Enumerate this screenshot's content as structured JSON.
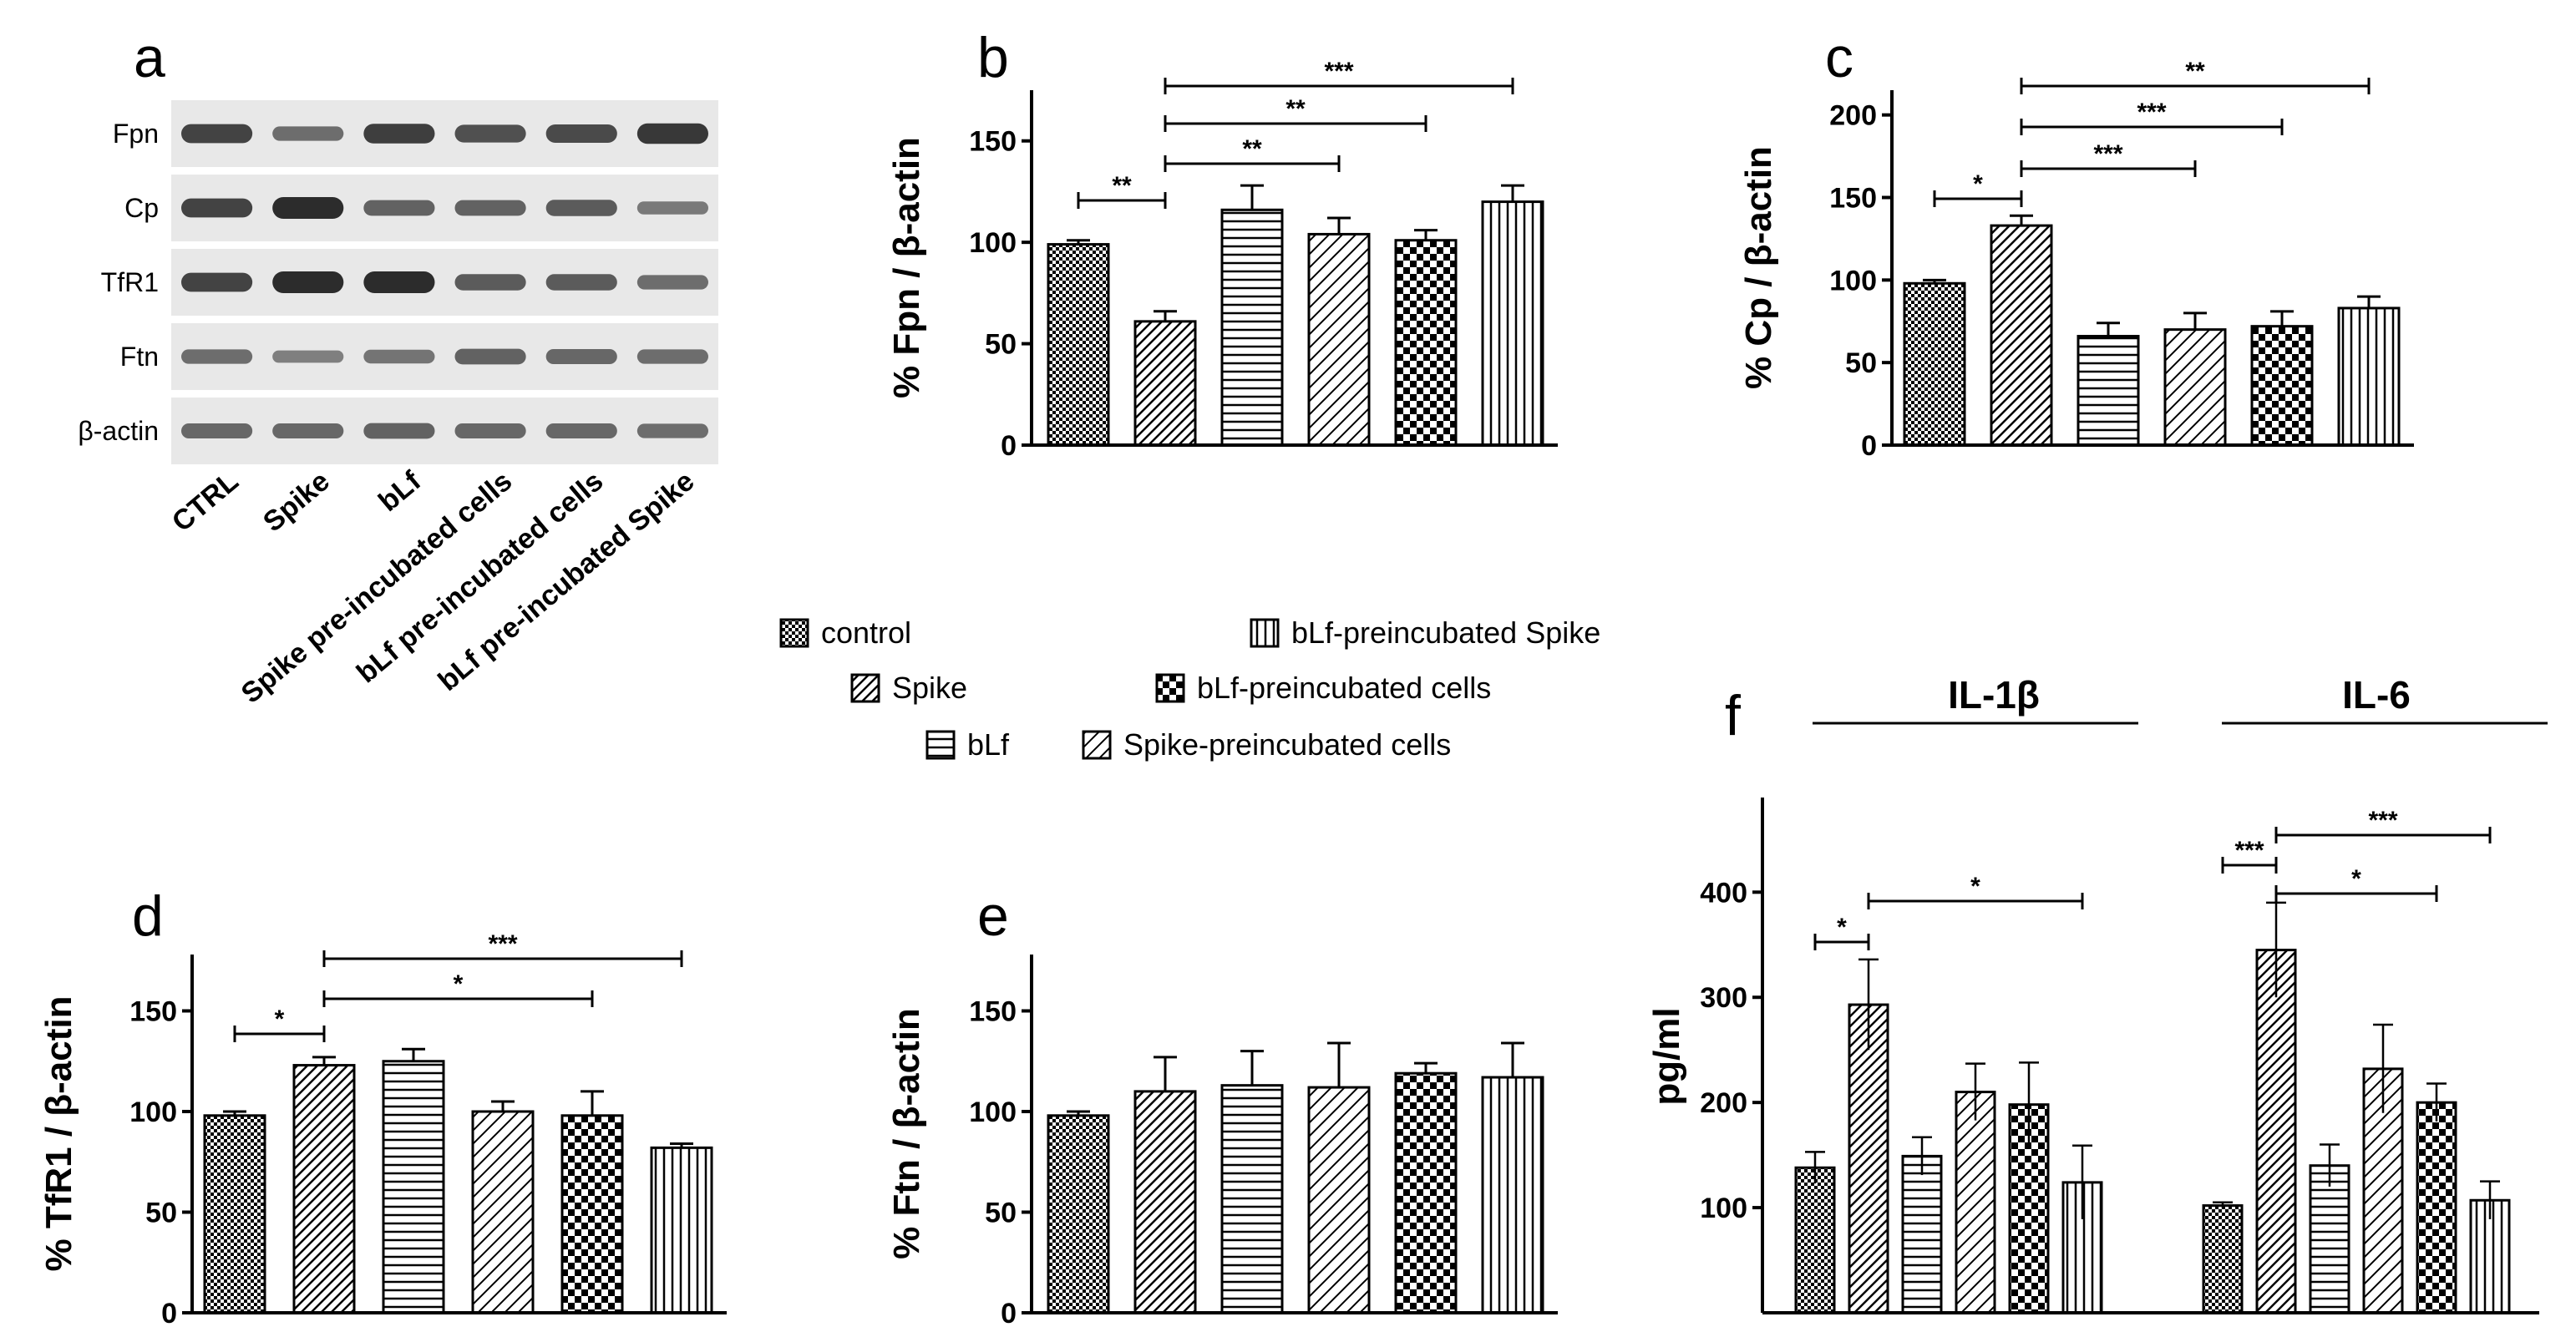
{
  "panel_labels": {
    "a": "a",
    "b": "b",
    "c": "c",
    "d": "d",
    "e": "e",
    "f": "f"
  },
  "colors": {
    "ink": "#000000",
    "blot_bg": "#e8e8e8",
    "band": "#222222",
    "bar_fill": "#ffffff"
  },
  "legend": {
    "items": [
      {
        "label": "control",
        "pattern": "control"
      },
      {
        "label": "Spike",
        "pattern": "spike"
      },
      {
        "label": "bLf",
        "pattern": "blf"
      },
      {
        "label": "bLf-preincubated Spike",
        "pattern": "blfspike"
      },
      {
        "label": "bLf-preincubated cells",
        "pattern": "blfcells"
      },
      {
        "label": "Spike-preincubated cells",
        "pattern": "spikecells"
      }
    ]
  },
  "western_blot": {
    "proteins": [
      "Fpn",
      "Cp",
      "TfR1",
      "Ftn",
      "β-actin"
    ],
    "lanes": [
      "CTRL",
      "Spike",
      "bLf",
      "Spike pre-incubated cells",
      "bLf pre-incubated cells",
      "bLf pre-incubated Spike"
    ],
    "band_intensity": [
      [
        0.8,
        0.45,
        0.85,
        0.7,
        0.75,
        0.9
      ],
      [
        0.8,
        1.0,
        0.55,
        0.55,
        0.6,
        0.35
      ],
      [
        0.8,
        1.0,
        1.0,
        0.6,
        0.6,
        0.45
      ],
      [
        0.45,
        0.3,
        0.4,
        0.55,
        0.5,
        0.45
      ],
      [
        0.5,
        0.5,
        0.55,
        0.5,
        0.5,
        0.45
      ]
    ]
  },
  "chart_data": [
    {
      "id": "b",
      "type": "bar",
      "title": "b",
      "ylabel": "% Fpn / β-actin",
      "ylim": [
        0,
        175
      ],
      "yticks": [
        0,
        50,
        100,
        150
      ],
      "patterns": [
        "control",
        "spike",
        "blf",
        "spikecells",
        "blfcells",
        "blfspike"
      ],
      "values": [
        99,
        61,
        116,
        104,
        101,
        120
      ],
      "errors": [
        2,
        5,
        12,
        8,
        5,
        8
      ],
      "significance": [
        {
          "from": 0,
          "to": 1,
          "label": "**"
        },
        {
          "from": 1,
          "to": 3,
          "label": "**"
        },
        {
          "from": 1,
          "to": 4,
          "label": "**"
        },
        {
          "from": 1,
          "to": 5,
          "label": "***"
        }
      ]
    },
    {
      "id": "c",
      "type": "bar",
      "title": "c",
      "ylabel": "% Cp / β-actin",
      "ylim": [
        0,
        215
      ],
      "yticks": [
        0,
        50,
        100,
        150,
        200
      ],
      "patterns": [
        "control",
        "spike",
        "blf",
        "spikecells",
        "blfcells",
        "blfspike"
      ],
      "values": [
        98,
        133,
        66,
        70,
        72,
        83
      ],
      "errors": [
        2,
        6,
        8,
        10,
        9,
        7
      ],
      "significance": [
        {
          "from": 0,
          "to": 1,
          "label": "*"
        },
        {
          "from": 1,
          "to": 3,
          "label": "***"
        },
        {
          "from": 1,
          "to": 4,
          "label": "***"
        },
        {
          "from": 1,
          "to": 5,
          "label": "**"
        }
      ]
    },
    {
      "id": "d",
      "type": "bar",
      "title": "d",
      "ylabel": "% TfR1 / β-actin",
      "ylim": [
        0,
        178
      ],
      "yticks": [
        0,
        50,
        100,
        150
      ],
      "patterns": [
        "control",
        "spike",
        "blf",
        "spikecells",
        "blfcells",
        "blfspike"
      ],
      "values": [
        98,
        123,
        125,
        100,
        98,
        82
      ],
      "errors": [
        2,
        4,
        6,
        5,
        12,
        2
      ],
      "significance": [
        {
          "from": 0,
          "to": 1,
          "label": "*"
        },
        {
          "from": 1,
          "to": 4,
          "label": "*"
        },
        {
          "from": 1,
          "to": 5,
          "label": "***"
        }
      ]
    },
    {
      "id": "e",
      "type": "bar",
      "title": "e",
      "ylabel": "% Ftn / β-actin",
      "ylim": [
        0,
        178
      ],
      "yticks": [
        0,
        50,
        100,
        150
      ],
      "patterns": [
        "control",
        "spike",
        "blf",
        "spikecells",
        "blfcells",
        "blfspike"
      ],
      "values": [
        98,
        110,
        113,
        112,
        119,
        117
      ],
      "errors": [
        2,
        17,
        17,
        22,
        5,
        17
      ],
      "significance": []
    },
    {
      "id": "f",
      "type": "bar",
      "title": "f",
      "ylabel": "pg/ml",
      "ylim": [
        0,
        490
      ],
      "yticks": [
        100,
        200,
        300,
        400
      ],
      "groups": [
        "IL-1β",
        "IL-6"
      ],
      "patterns": [
        "control",
        "spike",
        "blf",
        "spikecells",
        "blfcells",
        "blfspike"
      ],
      "series": [
        {
          "name": "IL-1β",
          "values": [
            138,
            293,
            149,
            210,
            198,
            124
          ],
          "errors": [
            15,
            43,
            18,
            27,
            40,
            35
          ]
        },
        {
          "name": "IL-6",
          "values": [
            102,
            345,
            140,
            232,
            200,
            107
          ],
          "errors": [
            3,
            45,
            20,
            42,
            18,
            18
          ]
        }
      ],
      "significance": [
        {
          "group": 0,
          "from": 0,
          "to": 1,
          "label": "*"
        },
        {
          "group": 0,
          "from": 1,
          "to": 5,
          "label": "*"
        },
        {
          "group": 1,
          "from": 0,
          "to": 1,
          "label": "***"
        },
        {
          "group": 1,
          "from": 1,
          "to": 4,
          "label": "*"
        },
        {
          "group": 1,
          "from": 1,
          "to": 5,
          "label": "***"
        }
      ]
    }
  ]
}
